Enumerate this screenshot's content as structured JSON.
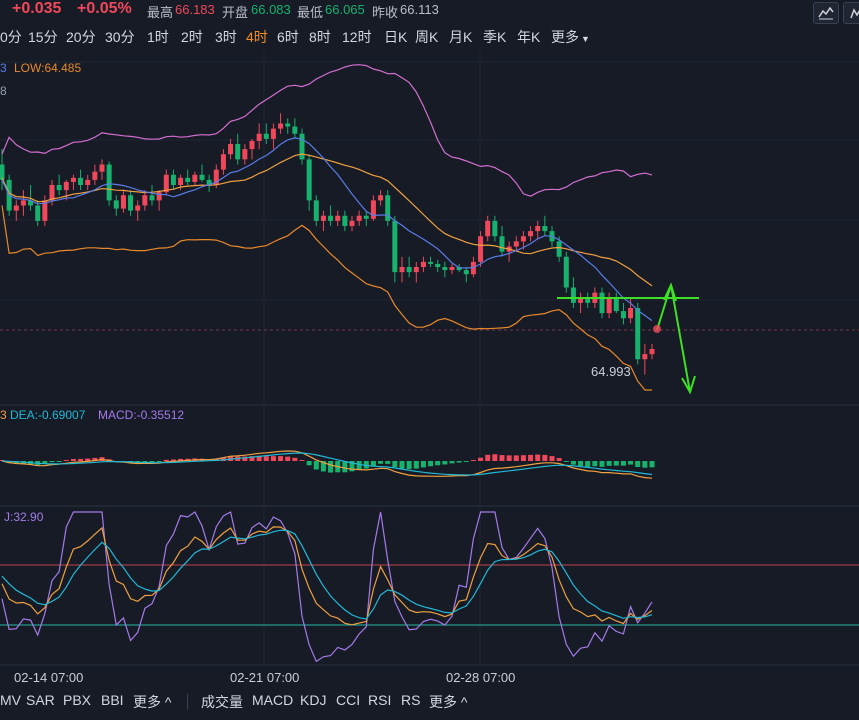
{
  "header": {
    "change": "+0.035",
    "change_pct": "+0.05%",
    "high_label": "最高",
    "high_value": "66.183",
    "open_label": "开盘",
    "open_value": "66.083",
    "low_label": "最低",
    "low_value": "66.065",
    "prev_label": "昨收",
    "prev_value": "66.113"
  },
  "toolbar": {
    "line_icon": "line-chart-icon",
    "indicator_icon": "indicator-icon"
  },
  "periods": [
    {
      "label": "0分",
      "active": false
    },
    {
      "label": "15分",
      "active": false
    },
    {
      "label": "20分",
      "active": false
    },
    {
      "label": "30分",
      "active": false
    },
    {
      "label": "1时",
      "active": false
    },
    {
      "label": "2时",
      "active": false
    },
    {
      "label": "3时",
      "active": false
    },
    {
      "label": "4时",
      "active": true
    },
    {
      "label": "6时",
      "active": false
    },
    {
      "label": "8时",
      "active": false
    },
    {
      "label": "12时",
      "active": false
    },
    {
      "label": "日K",
      "active": false
    },
    {
      "label": "周K",
      "active": false
    },
    {
      "label": "月K",
      "active": false
    },
    {
      "label": "季K",
      "active": false
    },
    {
      "label": "年K",
      "active": false
    },
    {
      "label": "更多",
      "active": false
    }
  ],
  "boll": {
    "low_text": "LOW:64.485",
    "clipped_left_a": "3",
    "clipped_left_b": "8"
  },
  "macd": {
    "clipped_left": "3",
    "dea_text": "DEA:-0.69007",
    "macd_text": "MACD:-0.35512"
  },
  "kdj": {
    "j_text": "J:32.90"
  },
  "price_annotation": "64.993",
  "date_labels": [
    "02-14 07:00",
    "02-21 07:00",
    "02-28 07:00"
  ],
  "bottom": {
    "main_tabs": [
      "MV",
      "SAR",
      "PBX",
      "BBI",
      "更多 ^"
    ],
    "sub_tabs": [
      "成交量",
      "MACD",
      "KDJ",
      "CCI",
      "RSI",
      "RS",
      "更多 ^"
    ]
  },
  "colors": {
    "up": "#f0485a",
    "down": "#17b26e",
    "background": "#161b26",
    "boll_upper": "#d36fd0",
    "boll_lower": "#e8892b",
    "mid_orange": "#f0a040",
    "mid_blue": "#5b7ce8",
    "green_arrow": "#3de024",
    "dif": "#f0a040",
    "dea": "#22b8d6",
    "kdj_j": "#a47be8",
    "kdj_k": "#f0a040",
    "kdj_d": "#22b8d6"
  },
  "chart_data": {
    "type": "candlestick",
    "title": "",
    "x_tick_labels": [
      "02-14 07:00",
      "02-21 07:00",
      "02-28 07:00"
    ],
    "y_annotation": 64.993,
    "ohlc": [
      [
        66.55,
        66.7,
        66.3,
        66.4
      ],
      [
        66.4,
        66.45,
        66.05,
        66.1
      ],
      [
        66.1,
        66.2,
        66.0,
        66.15
      ],
      [
        66.15,
        66.3,
        66.05,
        66.2
      ],
      [
        66.2,
        66.35,
        66.1,
        66.15
      ],
      [
        66.15,
        66.2,
        65.95,
        66.0
      ],
      [
        66.0,
        66.25,
        65.95,
        66.2
      ],
      [
        66.2,
        66.4,
        66.15,
        66.35
      ],
      [
        66.35,
        66.45,
        66.25,
        66.3
      ],
      [
        66.3,
        66.4,
        66.2,
        66.38
      ],
      [
        66.38,
        66.45,
        66.3,
        66.42
      ],
      [
        66.42,
        66.5,
        66.3,
        66.35
      ],
      [
        66.35,
        66.45,
        66.3,
        66.4
      ],
      [
        66.4,
        66.55,
        66.35,
        66.48
      ],
      [
        66.48,
        66.6,
        66.4,
        66.55
      ],
      [
        66.55,
        66.58,
        66.15,
        66.2
      ],
      [
        66.2,
        66.25,
        66.05,
        66.12
      ],
      [
        66.12,
        66.3,
        66.08,
        66.25
      ],
      [
        66.25,
        66.3,
        66.05,
        66.1
      ],
      [
        66.1,
        66.2,
        66.0,
        66.15
      ],
      [
        66.15,
        66.3,
        66.1,
        66.25
      ],
      [
        66.25,
        66.35,
        66.15,
        66.2
      ],
      [
        66.2,
        66.3,
        66.1,
        66.28
      ],
      [
        66.28,
        66.5,
        66.25,
        66.45
      ],
      [
        66.45,
        66.5,
        66.3,
        66.35
      ],
      [
        66.35,
        66.45,
        66.3,
        66.42
      ],
      [
        66.42,
        66.5,
        66.35,
        66.38
      ],
      [
        66.38,
        66.48,
        66.35,
        66.45
      ],
      [
        66.45,
        66.55,
        66.38,
        66.4
      ],
      [
        66.4,
        66.45,
        66.28,
        66.35
      ],
      [
        66.35,
        66.55,
        66.32,
        66.5
      ],
      [
        66.5,
        66.7,
        66.45,
        66.65
      ],
      [
        66.65,
        66.8,
        66.6,
        66.75
      ],
      [
        66.75,
        66.85,
        66.55,
        66.6
      ],
      [
        66.6,
        66.75,
        66.55,
        66.7
      ],
      [
        66.7,
        66.8,
        66.6,
        66.78
      ],
      [
        66.78,
        66.95,
        66.7,
        66.85
      ],
      [
        66.85,
        66.95,
        66.75,
        66.8
      ],
      [
        66.8,
        66.95,
        66.7,
        66.9
      ],
      [
        66.9,
        67.05,
        66.85,
        66.95
      ],
      [
        66.95,
        67.0,
        66.85,
        66.92
      ],
      [
        66.92,
        67.0,
        66.8,
        66.85
      ],
      [
        66.85,
        66.9,
        66.55,
        66.6
      ],
      [
        66.6,
        66.65,
        66.1,
        66.2
      ],
      [
        66.2,
        66.25,
        65.95,
        66.0
      ],
      [
        66.0,
        66.1,
        65.9,
        66.05
      ],
      [
        66.05,
        66.15,
        65.95,
        66.0
      ],
      [
        66.0,
        66.1,
        65.95,
        66.05
      ],
      [
        66.05,
        66.1,
        65.9,
        65.95
      ],
      [
        65.95,
        66.05,
        65.9,
        66.0
      ],
      [
        66.0,
        66.1,
        65.95,
        66.05
      ],
      [
        66.05,
        66.1,
        65.95,
        66.02
      ],
      [
        66.02,
        66.25,
        66.0,
        66.2
      ],
      [
        66.2,
        66.3,
        66.15,
        66.25
      ],
      [
        66.25,
        66.3,
        65.95,
        66.0
      ],
      [
        66.0,
        66.05,
        65.4,
        65.5
      ],
      [
        65.5,
        65.65,
        65.4,
        65.55
      ],
      [
        65.55,
        65.65,
        65.45,
        65.5
      ],
      [
        65.5,
        65.6,
        65.4,
        65.55
      ],
      [
        65.55,
        65.65,
        65.5,
        65.6
      ],
      [
        65.6,
        65.65,
        65.55,
        65.58
      ],
      [
        65.58,
        65.62,
        65.5,
        65.55
      ],
      [
        65.55,
        65.6,
        65.45,
        65.52
      ],
      [
        65.52,
        65.58,
        65.48,
        65.55
      ],
      [
        65.55,
        65.58,
        65.5,
        65.52
      ],
      [
        65.52,
        65.55,
        65.4,
        65.48
      ],
      [
        65.48,
        65.65,
        65.45,
        65.6
      ],
      [
        65.6,
        65.9,
        65.55,
        65.85
      ],
      [
        65.85,
        66.05,
        65.8,
        66.0
      ],
      [
        66.0,
        66.05,
        65.8,
        65.85
      ],
      [
        65.85,
        65.95,
        65.65,
        65.7
      ],
      [
        65.7,
        65.8,
        65.6,
        65.75
      ],
      [
        65.75,
        65.85,
        65.7,
        65.8
      ],
      [
        65.8,
        65.9,
        65.72,
        65.85
      ],
      [
        65.85,
        65.95,
        65.8,
        65.9
      ],
      [
        65.9,
        66.0,
        65.82,
        65.95
      ],
      [
        65.95,
        66.05,
        65.85,
        65.9
      ],
      [
        65.9,
        65.95,
        65.75,
        65.8
      ],
      [
        65.8,
        65.85,
        65.6,
        65.65
      ],
      [
        65.65,
        65.7,
        65.3,
        65.35
      ],
      [
        65.35,
        65.45,
        65.15,
        65.2
      ],
      [
        65.2,
        65.3,
        65.1,
        65.25
      ],
      [
        65.25,
        65.3,
        65.15,
        65.2
      ],
      [
        65.2,
        65.35,
        65.15,
        65.3
      ],
      [
        65.3,
        65.35,
        65.05,
        65.1
      ],
      [
        65.1,
        65.3,
        65.05,
        65.25
      ],
      [
        65.25,
        65.3,
        65.1,
        65.12
      ],
      [
        65.12,
        65.2,
        64.99,
        65.05
      ],
      [
        65.05,
        65.25,
        65.0,
        65.15
      ],
      [
        65.15,
        65.2,
        64.6,
        64.65
      ],
      [
        64.65,
        64.8,
        64.5,
        64.7
      ],
      [
        64.7,
        64.8,
        64.65,
        64.75
      ]
    ]
  }
}
